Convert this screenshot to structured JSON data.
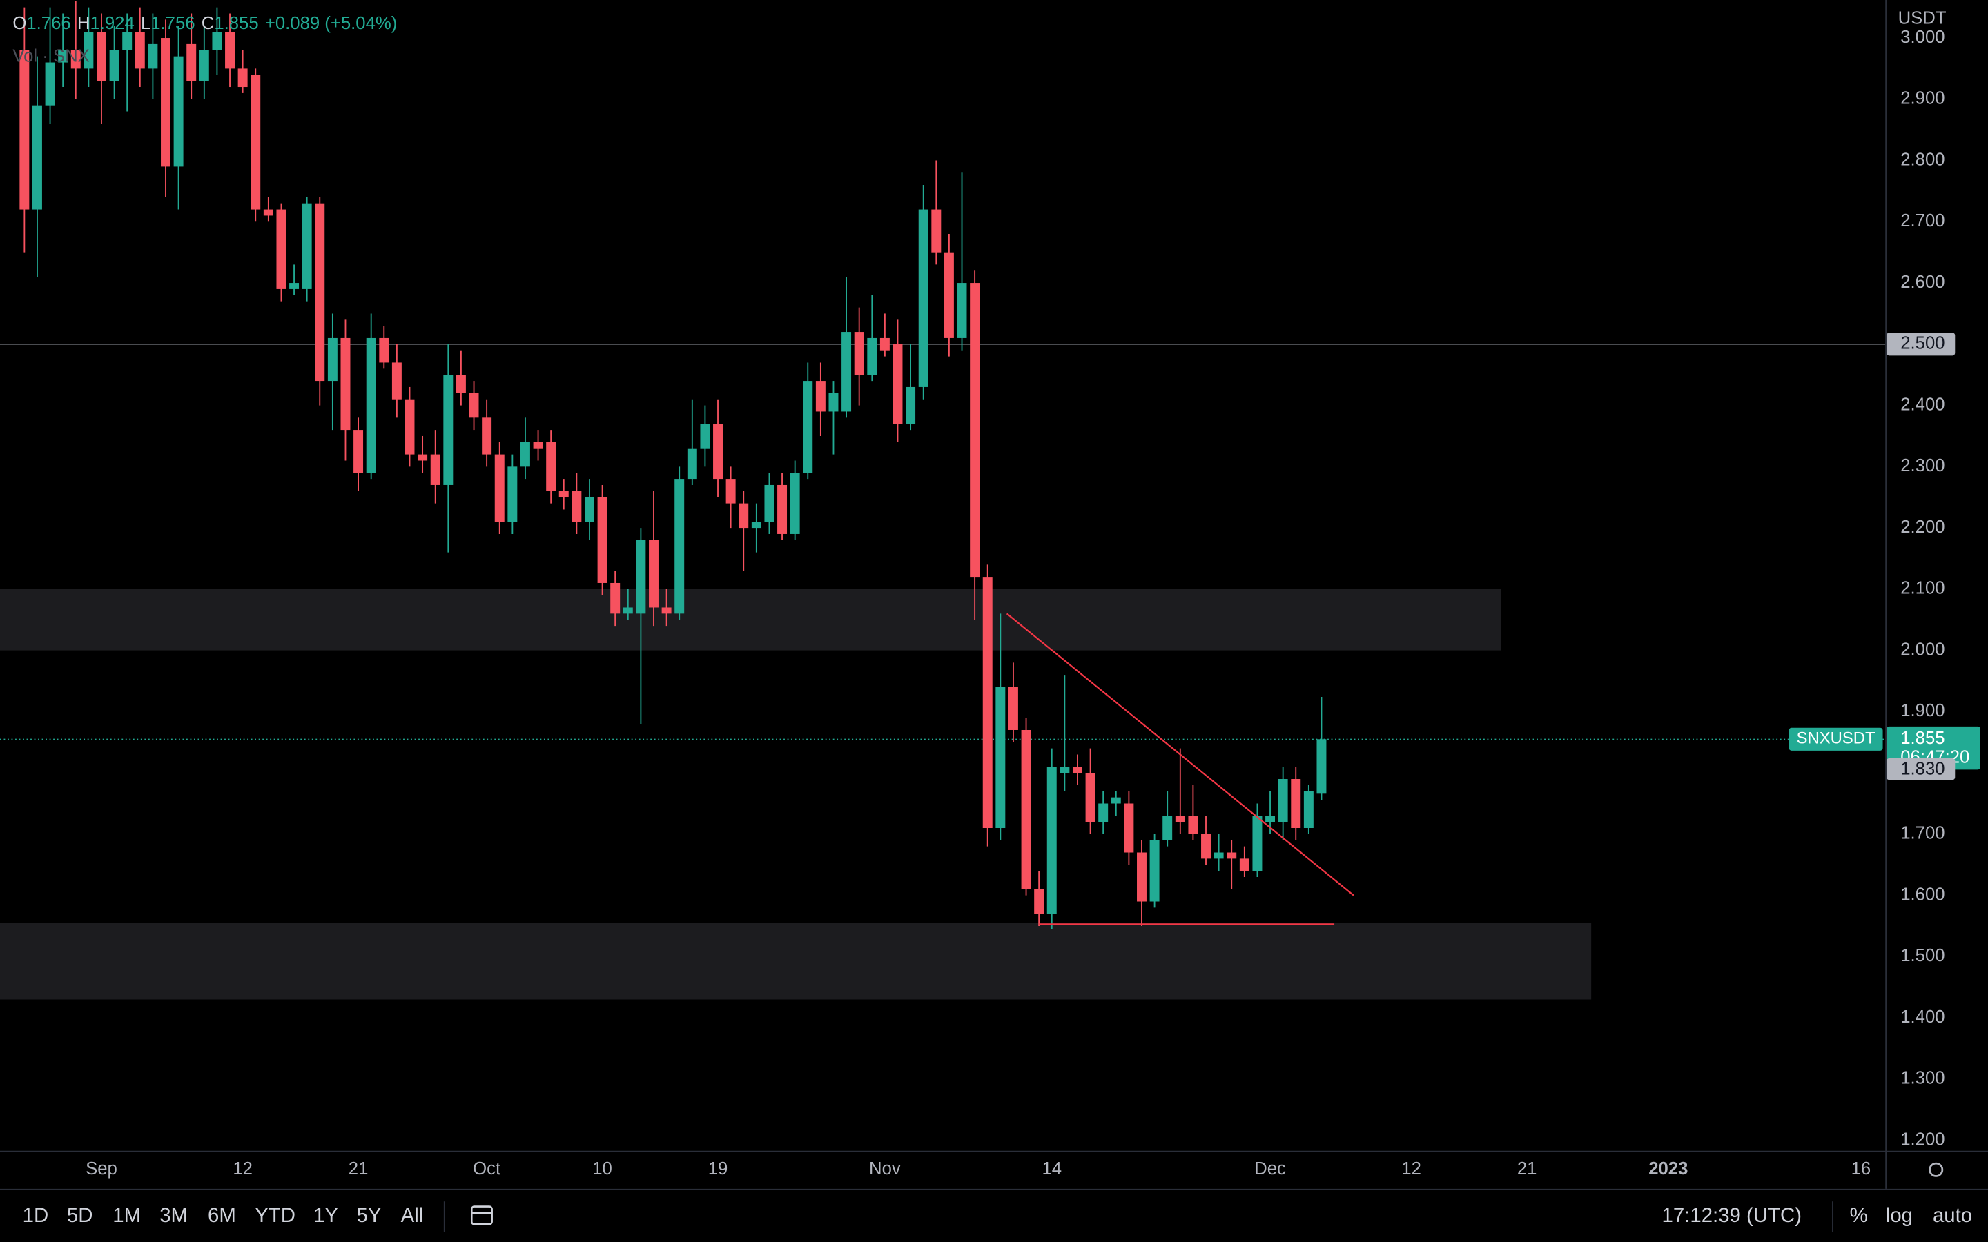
{
  "chart_data": {
    "type": "candlestick",
    "currency": "USDT",
    "volume_legend": "Vol · SNX",
    "legend": [
      {
        "label": "O",
        "value": 1.766
      },
      {
        "label": "H",
        "value": 1.924
      },
      {
        "label": "L",
        "value": 1.756
      },
      {
        "label": "C",
        "value": 1.855
      }
    ],
    "change": "+0.089 (+5.04%)",
    "up_color": "#22ab94",
    "down_color": "#f7525f",
    "x": [
      -6,
      -5,
      -4,
      -3,
      -2,
      -1,
      0,
      1,
      2,
      3,
      4,
      5,
      6,
      7,
      8,
      9,
      10,
      11,
      12,
      13,
      14,
      15,
      16,
      17,
      18,
      19,
      20,
      21,
      22,
      23,
      24,
      25,
      26,
      27,
      28,
      29,
      30,
      31,
      32,
      33,
      34,
      35,
      36,
      37,
      38,
      39,
      40,
      41,
      42,
      43,
      44,
      45,
      46,
      47,
      48,
      49,
      50,
      51,
      52,
      53,
      54,
      55,
      56,
      57,
      58,
      59,
      60,
      61,
      62,
      63,
      64,
      65,
      66,
      67,
      68,
      69,
      70,
      71,
      72,
      73,
      74,
      75,
      76,
      77,
      78,
      79,
      80,
      81,
      82,
      83,
      84,
      85,
      86,
      87,
      88,
      89,
      90,
      91,
      92,
      93,
      94,
      95
    ],
    "open": [
      2.98,
      2.72,
      2.89,
      2.96,
      2.98,
      2.95,
      3.01,
      2.93,
      2.98,
      3.01,
      2.95,
      3.0,
      2.79,
      2.99,
      2.93,
      2.98,
      3.01,
      2.95,
      2.94,
      2.72,
      2.72,
      2.59,
      2.59,
      2.73,
      2.44,
      2.51,
      2.36,
      2.29,
      2.51,
      2.47,
      2.41,
      2.32,
      2.32,
      2.27,
      2.45,
      2.42,
      2.38,
      2.32,
      2.21,
      2.3,
      2.34,
      2.34,
      2.26,
      2.26,
      2.21,
      2.25,
      2.11,
      2.06,
      2.06,
      2.18,
      2.07,
      2.06,
      2.28,
      2.33,
      2.37,
      2.28,
      2.24,
      2.2,
      2.21,
      2.27,
      2.19,
      2.29,
      2.44,
      2.39,
      2.39,
      2.52,
      2.45,
      2.51,
      2.5,
      2.37,
      2.43,
      2.72,
      2.65,
      2.51,
      2.6,
      2.12,
      1.71,
      1.94,
      1.87,
      1.61,
      1.57,
      1.8,
      1.81,
      1.8,
      1.72,
      1.75,
      1.75,
      1.67,
      1.59,
      1.69,
      1.73,
      1.73,
      1.7,
      1.66,
      1.67,
      1.66,
      1.64,
      1.72,
      1.72,
      1.79,
      1.71,
      1.766
    ],
    "high": [
      3.05,
      2.97,
      3.05,
      3.04,
      3.06,
      3.05,
      3.04,
      3.02,
      3.04,
      3.05,
      3.04,
      3.03,
      3.02,
      3.04,
      3.02,
      3.05,
      3.04,
      2.98,
      2.95,
      2.74,
      2.73,
      2.63,
      2.74,
      2.74,
      2.55,
      2.54,
      2.38,
      2.55,
      2.53,
      2.5,
      2.43,
      2.35,
      2.36,
      2.5,
      2.49,
      2.44,
      2.41,
      2.34,
      2.32,
      2.38,
      2.36,
      2.36,
      2.28,
      2.29,
      2.28,
      2.27,
      2.13,
      2.1,
      2.2,
      2.26,
      2.1,
      2.3,
      2.41,
      2.4,
      2.41,
      2.3,
      2.26,
      2.24,
      2.29,
      2.29,
      2.31,
      2.47,
      2.47,
      2.44,
      2.61,
      2.56,
      2.58,
      2.55,
      2.54,
      2.5,
      2.76,
      2.8,
      2.68,
      2.78,
      2.62,
      2.14,
      2.06,
      1.98,
      1.89,
      1.64,
      1.84,
      1.96,
      1.83,
      1.84,
      1.77,
      1.77,
      1.77,
      1.69,
      1.7,
      1.77,
      1.84,
      1.78,
      1.73,
      1.7,
      1.69,
      1.68,
      1.75,
      1.77,
      1.81,
      1.81,
      1.78,
      1.924
    ],
    "low": [
      2.65,
      2.61,
      2.86,
      2.92,
      2.9,
      2.92,
      2.86,
      2.9,
      2.88,
      2.92,
      2.9,
      2.74,
      2.72,
      2.9,
      2.9,
      2.94,
      2.92,
      2.91,
      2.7,
      2.7,
      2.57,
      2.58,
      2.57,
      2.4,
      2.36,
      2.31,
      2.26,
      2.28,
      2.46,
      2.38,
      2.3,
      2.29,
      2.24,
      2.16,
      2.4,
      2.36,
      2.3,
      2.19,
      2.19,
      2.28,
      2.31,
      2.24,
      2.23,
      2.19,
      2.18,
      2.09,
      2.04,
      2.05,
      1.88,
      2.04,
      2.04,
      2.05,
      2.27,
      2.3,
      2.25,
      2.2,
      2.13,
      2.16,
      2.19,
      2.18,
      2.18,
      2.28,
      2.35,
      2.32,
      2.38,
      2.4,
      2.44,
      2.48,
      2.34,
      2.36,
      2.41,
      2.63,
      2.48,
      2.49,
      2.05,
      1.68,
      1.69,
      1.85,
      1.6,
      1.55,
      1.545,
      1.77,
      1.78,
      1.7,
      1.7,
      1.73,
      1.65,
      1.55,
      1.58,
      1.68,
      1.7,
      1.69,
      1.65,
      1.64,
      1.61,
      1.63,
      1.63,
      1.7,
      1.69,
      1.69,
      1.7,
      1.756
    ],
    "close": [
      2.72,
      2.89,
      2.96,
      2.98,
      2.95,
      3.01,
      2.93,
      2.98,
      3.01,
      2.95,
      2.99,
      2.79,
      2.97,
      2.93,
      2.98,
      3.01,
      2.95,
      2.92,
      2.72,
      2.71,
      2.59,
      2.6,
      2.73,
      2.44,
      2.51,
      2.36,
      2.29,
      2.51,
      2.47,
      2.41,
      2.32,
      2.31,
      2.27,
      2.45,
      2.42,
      2.38,
      2.32,
      2.21,
      2.3,
      2.34,
      2.33,
      2.26,
      2.25,
      2.21,
      2.25,
      2.11,
      2.06,
      2.07,
      2.18,
      2.07,
      2.06,
      2.28,
      2.33,
      2.37,
      2.28,
      2.24,
      2.2,
      2.21,
      2.27,
      2.19,
      2.29,
      2.44,
      2.39,
      2.42,
      2.52,
      2.45,
      2.51,
      2.49,
      2.37,
      2.43,
      2.72,
      2.65,
      2.51,
      2.6,
      2.12,
      1.71,
      1.94,
      1.87,
      1.61,
      1.57,
      1.81,
      1.81,
      1.8,
      1.72,
      1.75,
      1.76,
      1.67,
      1.59,
      1.69,
      1.73,
      1.72,
      1.7,
      1.66,
      1.67,
      1.66,
      1.64,
      1.73,
      1.73,
      1.79,
      1.71,
      1.77,
      1.855
    ],
    "xlim": [
      -7.9,
      138.9
    ],
    "xticks": [
      {
        "value": 0,
        "label": "Sep"
      },
      {
        "value": 11,
        "label": "12"
      },
      {
        "value": 20,
        "label": "21"
      },
      {
        "value": 30,
        "label": "Oct"
      },
      {
        "value": 39,
        "label": "10"
      },
      {
        "value": 48,
        "label": "19"
      },
      {
        "value": 61,
        "label": "Nov"
      },
      {
        "value": 74,
        "label": "14"
      },
      {
        "value": 91,
        "label": "Dec"
      },
      {
        "value": 102,
        "label": "12"
      },
      {
        "value": 111,
        "label": "21"
      },
      {
        "value": 122,
        "label": "2023"
      },
      {
        "value": 137,
        "label": "16"
      }
    ],
    "ylim": [
      1.183,
      3.062
    ],
    "yticks": [
      {
        "value": 3.0,
        "label": "3.000"
      },
      {
        "value": 2.9,
        "label": "2.900"
      },
      {
        "value": 2.8,
        "label": "2.800"
      },
      {
        "value": 2.7,
        "label": "2.700"
      },
      {
        "value": 2.6,
        "label": "2.600"
      },
      {
        "value": 2.5,
        "label": "2.500"
      },
      {
        "value": 2.4,
        "label": "2.400"
      },
      {
        "value": 2.3,
        "label": "2.300"
      },
      {
        "value": 2.2,
        "label": "2.200"
      },
      {
        "value": 2.1,
        "label": "2.100"
      },
      {
        "value": 2.0,
        "label": "2.000"
      },
      {
        "value": 1.9,
        "label": "1.900"
      },
      {
        "value": 1.8,
        "label": "1.800"
      },
      {
        "value": 1.7,
        "label": "1.700"
      },
      {
        "value": 1.6,
        "label": "1.600"
      },
      {
        "value": 1.5,
        "label": "1.500"
      },
      {
        "value": 1.4,
        "label": "1.400"
      },
      {
        "value": 1.3,
        "label": "1.300"
      },
      {
        "value": 1.2,
        "label": "1.200"
      }
    ],
    "zones": [
      {
        "from": 2.0,
        "to": 2.1,
        "x_end": 109
      },
      {
        "from": 1.43,
        "to": 1.555,
        "x_end": 116
      }
    ],
    "trendline": {
      "x": [
        70.5,
        97.5
      ],
      "y": [
        2.06,
        1.6
      ]
    },
    "support_line": {
      "x": [
        73,
        96
      ],
      "y": [
        1.553,
        1.553
      ]
    },
    "horizontal_line": {
      "value": 2.5,
      "label": "2.500"
    },
    "last_price": {
      "symbol": "SNXUSDT",
      "value": 1.855,
      "countdown": "06:47:20"
    },
    "price_marker": {
      "value": 1.83,
      "label": "1.830"
    }
  },
  "toolbar": {
    "ranges": [
      "1D",
      "5D",
      "1M",
      "3M",
      "6M",
      "YTD",
      "1Y",
      "5Y",
      "All"
    ],
    "clock": "17:12:39 (UTC)",
    "options": [
      "%",
      "log",
      "auto"
    ]
  }
}
